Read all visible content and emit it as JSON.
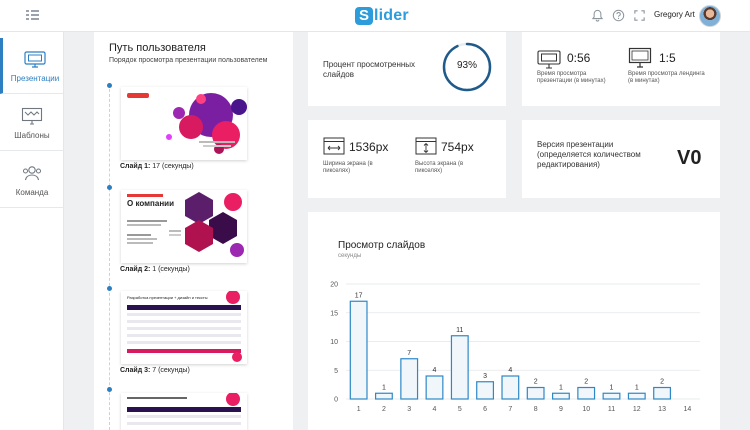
{
  "header": {
    "logo_letter": "S",
    "logo_rest": "lider",
    "user_name": "Gregory Art"
  },
  "sidebar": {
    "items": [
      {
        "label": "Презентации",
        "icon": "presentation-icon",
        "active": true
      },
      {
        "label": "Шаблоны",
        "icon": "template-icon",
        "active": false
      },
      {
        "label": "Команда",
        "icon": "team-icon",
        "active": false
      }
    ]
  },
  "journey": {
    "title": "Путь пользователя",
    "subtitle": "Порядок просмотра презентации пользователем",
    "slides": [
      {
        "caption_bold": "Слайд 1:",
        "caption_rest": " 17 (секунды)"
      },
      {
        "caption_bold": "Слайд 2:",
        "caption_rest": " 1 (секунды)"
      },
      {
        "caption_bold": "Слайд 3:",
        "caption_rest": " 7 (секунды)"
      }
    ],
    "thumb2_title": "О компании",
    "thumb3_title": "Разработка презентации + дизайн и тексты"
  },
  "stats": {
    "viewed_percent_label": "Процент просмотренных слайдов",
    "viewed_percent_value": "93%",
    "viewed_percent_fraction": 0.93,
    "view_time_value": "0:56",
    "view_time_label": "Время просмотра презентации (в минутах)",
    "landing_time_value": "1:5",
    "landing_time_label": "Время просмотра лендинга (в минутах)",
    "screen_width_value": "1536px",
    "screen_width_label": "Ширина экрана (в пикселях)",
    "screen_height_value": "754px",
    "screen_height_label": "Высота экрана (в пикселях)",
    "version_label": "Версия презентации (определяется количеством редактирования)",
    "version_value": "V0"
  },
  "chart_data": {
    "type": "bar",
    "title": "Просмотр слайдов",
    "subtitle": "секунды",
    "categories": [
      "1",
      "2",
      "3",
      "4",
      "5",
      "6",
      "7",
      "8",
      "9",
      "10",
      "11",
      "12",
      "13",
      "14"
    ],
    "values": [
      17,
      1,
      7,
      4,
      11,
      3,
      4,
      2,
      1,
      2,
      1,
      1,
      2,
      null
    ],
    "ylim": [
      0,
      20
    ],
    "yticks": [
      0,
      5,
      10,
      15,
      20
    ],
    "grid": true,
    "colors": {
      "bar_fill": "#f1f6fa",
      "bar_stroke": "#2d88c6"
    }
  }
}
